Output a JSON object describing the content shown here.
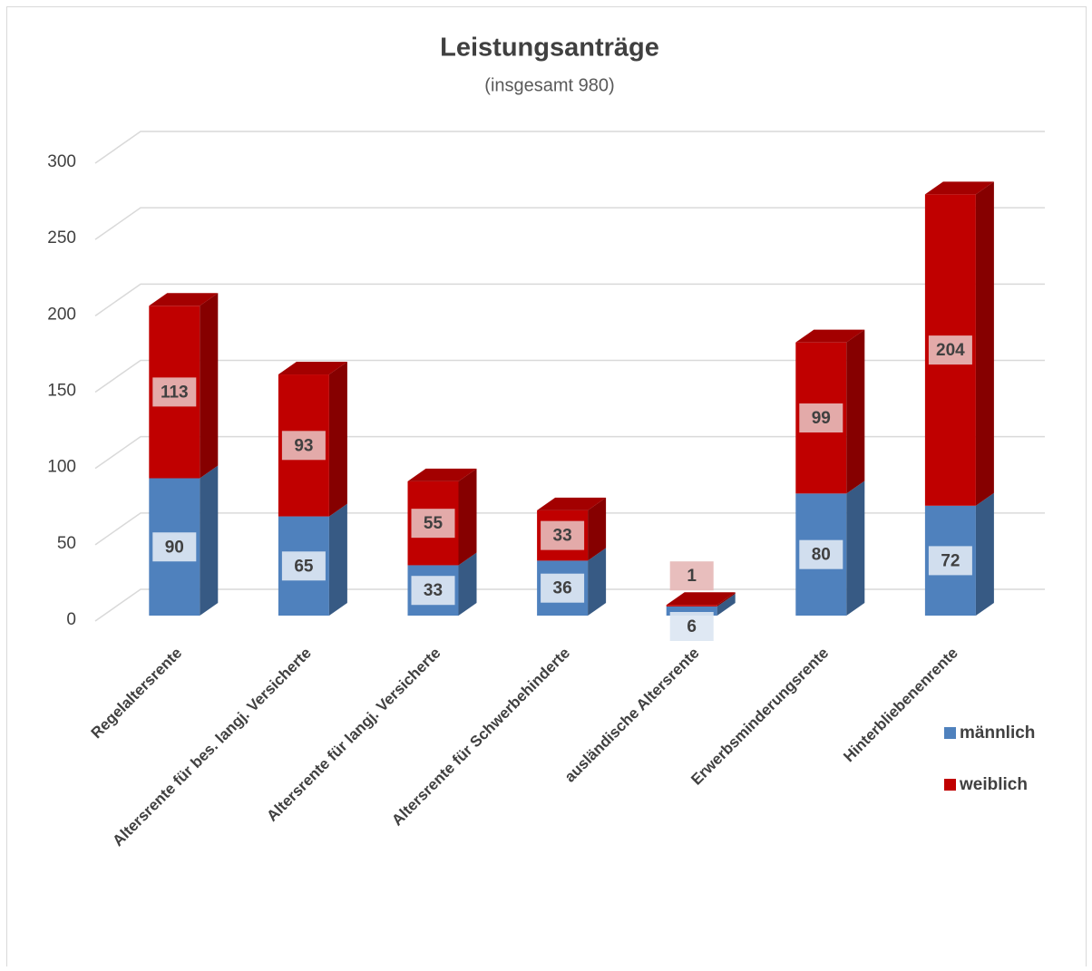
{
  "chart_data": {
    "type": "bar3d_stacked",
    "title": "Leistungsanträge",
    "subtitle": "(insgesamt 980)",
    "categories": [
      "Regelaltersrente",
      "Altersrente für bes. langj. Versicherte",
      "Altersrente für langj. Versicherte",
      "Altersrente für Schwerbehinderte",
      "ausländische Altersrente",
      "Erwerbsminderungsrente",
      "Hinterbliebenenrente"
    ],
    "series": [
      {
        "name": "männlich",
        "color": "#4f81bd",
        "values": [
          90,
          65,
          33,
          36,
          6,
          80,
          72
        ]
      },
      {
        "name": "weiblich",
        "color": "#c00000",
        "values": [
          113,
          93,
          55,
          33,
          1,
          99,
          204
        ]
      }
    ],
    "ylim": [
      0,
      300
    ],
    "yticks": [
      0,
      50,
      100,
      150,
      200,
      250,
      300
    ],
    "grid": true,
    "legend": "right"
  }
}
